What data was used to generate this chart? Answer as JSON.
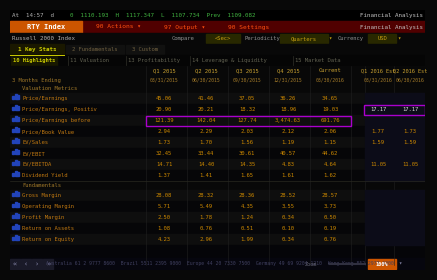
{
  "rows_valuation": [
    {
      "label": "Price/Earnings",
      "vals": [
        "45.06",
        "41.46",
        "37.05",
        "36.26",
        "34.65",
        "",
        ""
      ]
    },
    {
      "label": "Price/Earnings, Positiv",
      "vals": [
        "20.90",
        "20.21",
        "18.32",
        "18.96",
        "19.03",
        "17.17",
        "17.17"
      ],
      "highlight_est": true
    },
    {
      "label": "Price/Earnings before",
      "vals": [
        "121.39",
        "142.04",
        "127.74",
        "3,474.63",
        "691.76",
        "",
        ""
      ],
      "highlight_row": true
    },
    {
      "label": "Price/Book Value",
      "vals": [
        "2.94",
        "2.29",
        "2.03",
        "2.12",
        "2.06",
        "1.77",
        "1.73"
      ]
    },
    {
      "label": "EV/Sales",
      "vals": [
        "1.73",
        "1.70",
        "1.56",
        "1.19",
        "1.15",
        "1.59",
        "1.59"
      ]
    },
    {
      "label": "EV/EBIT",
      "vals": [
        "32.45",
        "33.44",
        "30.61",
        "40.57",
        "44.62",
        "",
        ""
      ]
    },
    {
      "label": "EV/EBITDA",
      "vals": [
        "14.71",
        "14.40",
        "14.35",
        "4.83",
        "4.64",
        "11.05",
        "11.05"
      ]
    },
    {
      "label": "Dividend Yield",
      "vals": [
        "1.37",
        "1.41",
        "1.65",
        "1.61",
        "1.62",
        "",
        ""
      ]
    }
  ],
  "rows_fundamentals": [
    {
      "label": "Gross Margin",
      "vals": [
        "28.08",
        "28.32",
        "28.36",
        "28.52",
        "28.57",
        "",
        ""
      ]
    },
    {
      "label": "Operating Margin",
      "vals": [
        "5.71",
        "5.49",
        "4.35",
        "3.55",
        "3.73",
        "",
        ""
      ]
    },
    {
      "label": "Profit Margin",
      "vals": [
        "2.50",
        "1.78",
        "1.24",
        "0.34",
        "0.50",
        "",
        ""
      ]
    },
    {
      "label": "Return on Assets",
      "vals": [
        "1.08",
        "0.76",
        "0.51",
        "0.10",
        "0.19",
        "",
        ""
      ]
    },
    {
      "label": "Return on Equity",
      "vals": [
        "4.23",
        "2.96",
        "1.99",
        "0.34",
        "0.76",
        "",
        ""
      ]
    }
  ],
  "col_headers": [
    "Q1 2015",
    "Q2 2015",
    "Q3 2015",
    "Q4 2015",
    "Current",
    "Q1 2016 Est",
    "Q2 2016 Est"
  ],
  "dates": [
    "03/31/2015",
    "06/30/2015",
    "09/30/2015",
    "12/31/2015",
    "03/30/2016",
    "03/31/2016",
    "06/30/2016"
  ],
  "bg": "#080808",
  "row_odd": "#0e0e0e",
  "row_even": "#060608",
  "val_orange": "#cc8800",
  "val_light": "#cc8800",
  "est_white": "#e0e0e0",
  "hdr_gold": "#c8a030",
  "label_orange": "#c07810",
  "section_gold": "#a07828",
  "bar_blue": "#2244bb",
  "purple_box": "#aa00cc",
  "toolbar_red": "#8b0000",
  "toolbar_dark": "#500000",
  "rty_orange": "#cc5500",
  "status_green": "#40b040",
  "status_gray": "#b0b0b0",
  "tab_active_bg": "#1a1800",
  "tab_active_fg": "#cccc00",
  "tab_inactive_fg": "#706040",
  "subtab_active_fg": "#cccc00",
  "subtab_inactive_fg": "#606050",
  "subtab_sep": "#303028",
  "footer_bg": "#06060e",
  "nav_bg": "#1a1a28",
  "zoom_orange": "#cc5500"
}
